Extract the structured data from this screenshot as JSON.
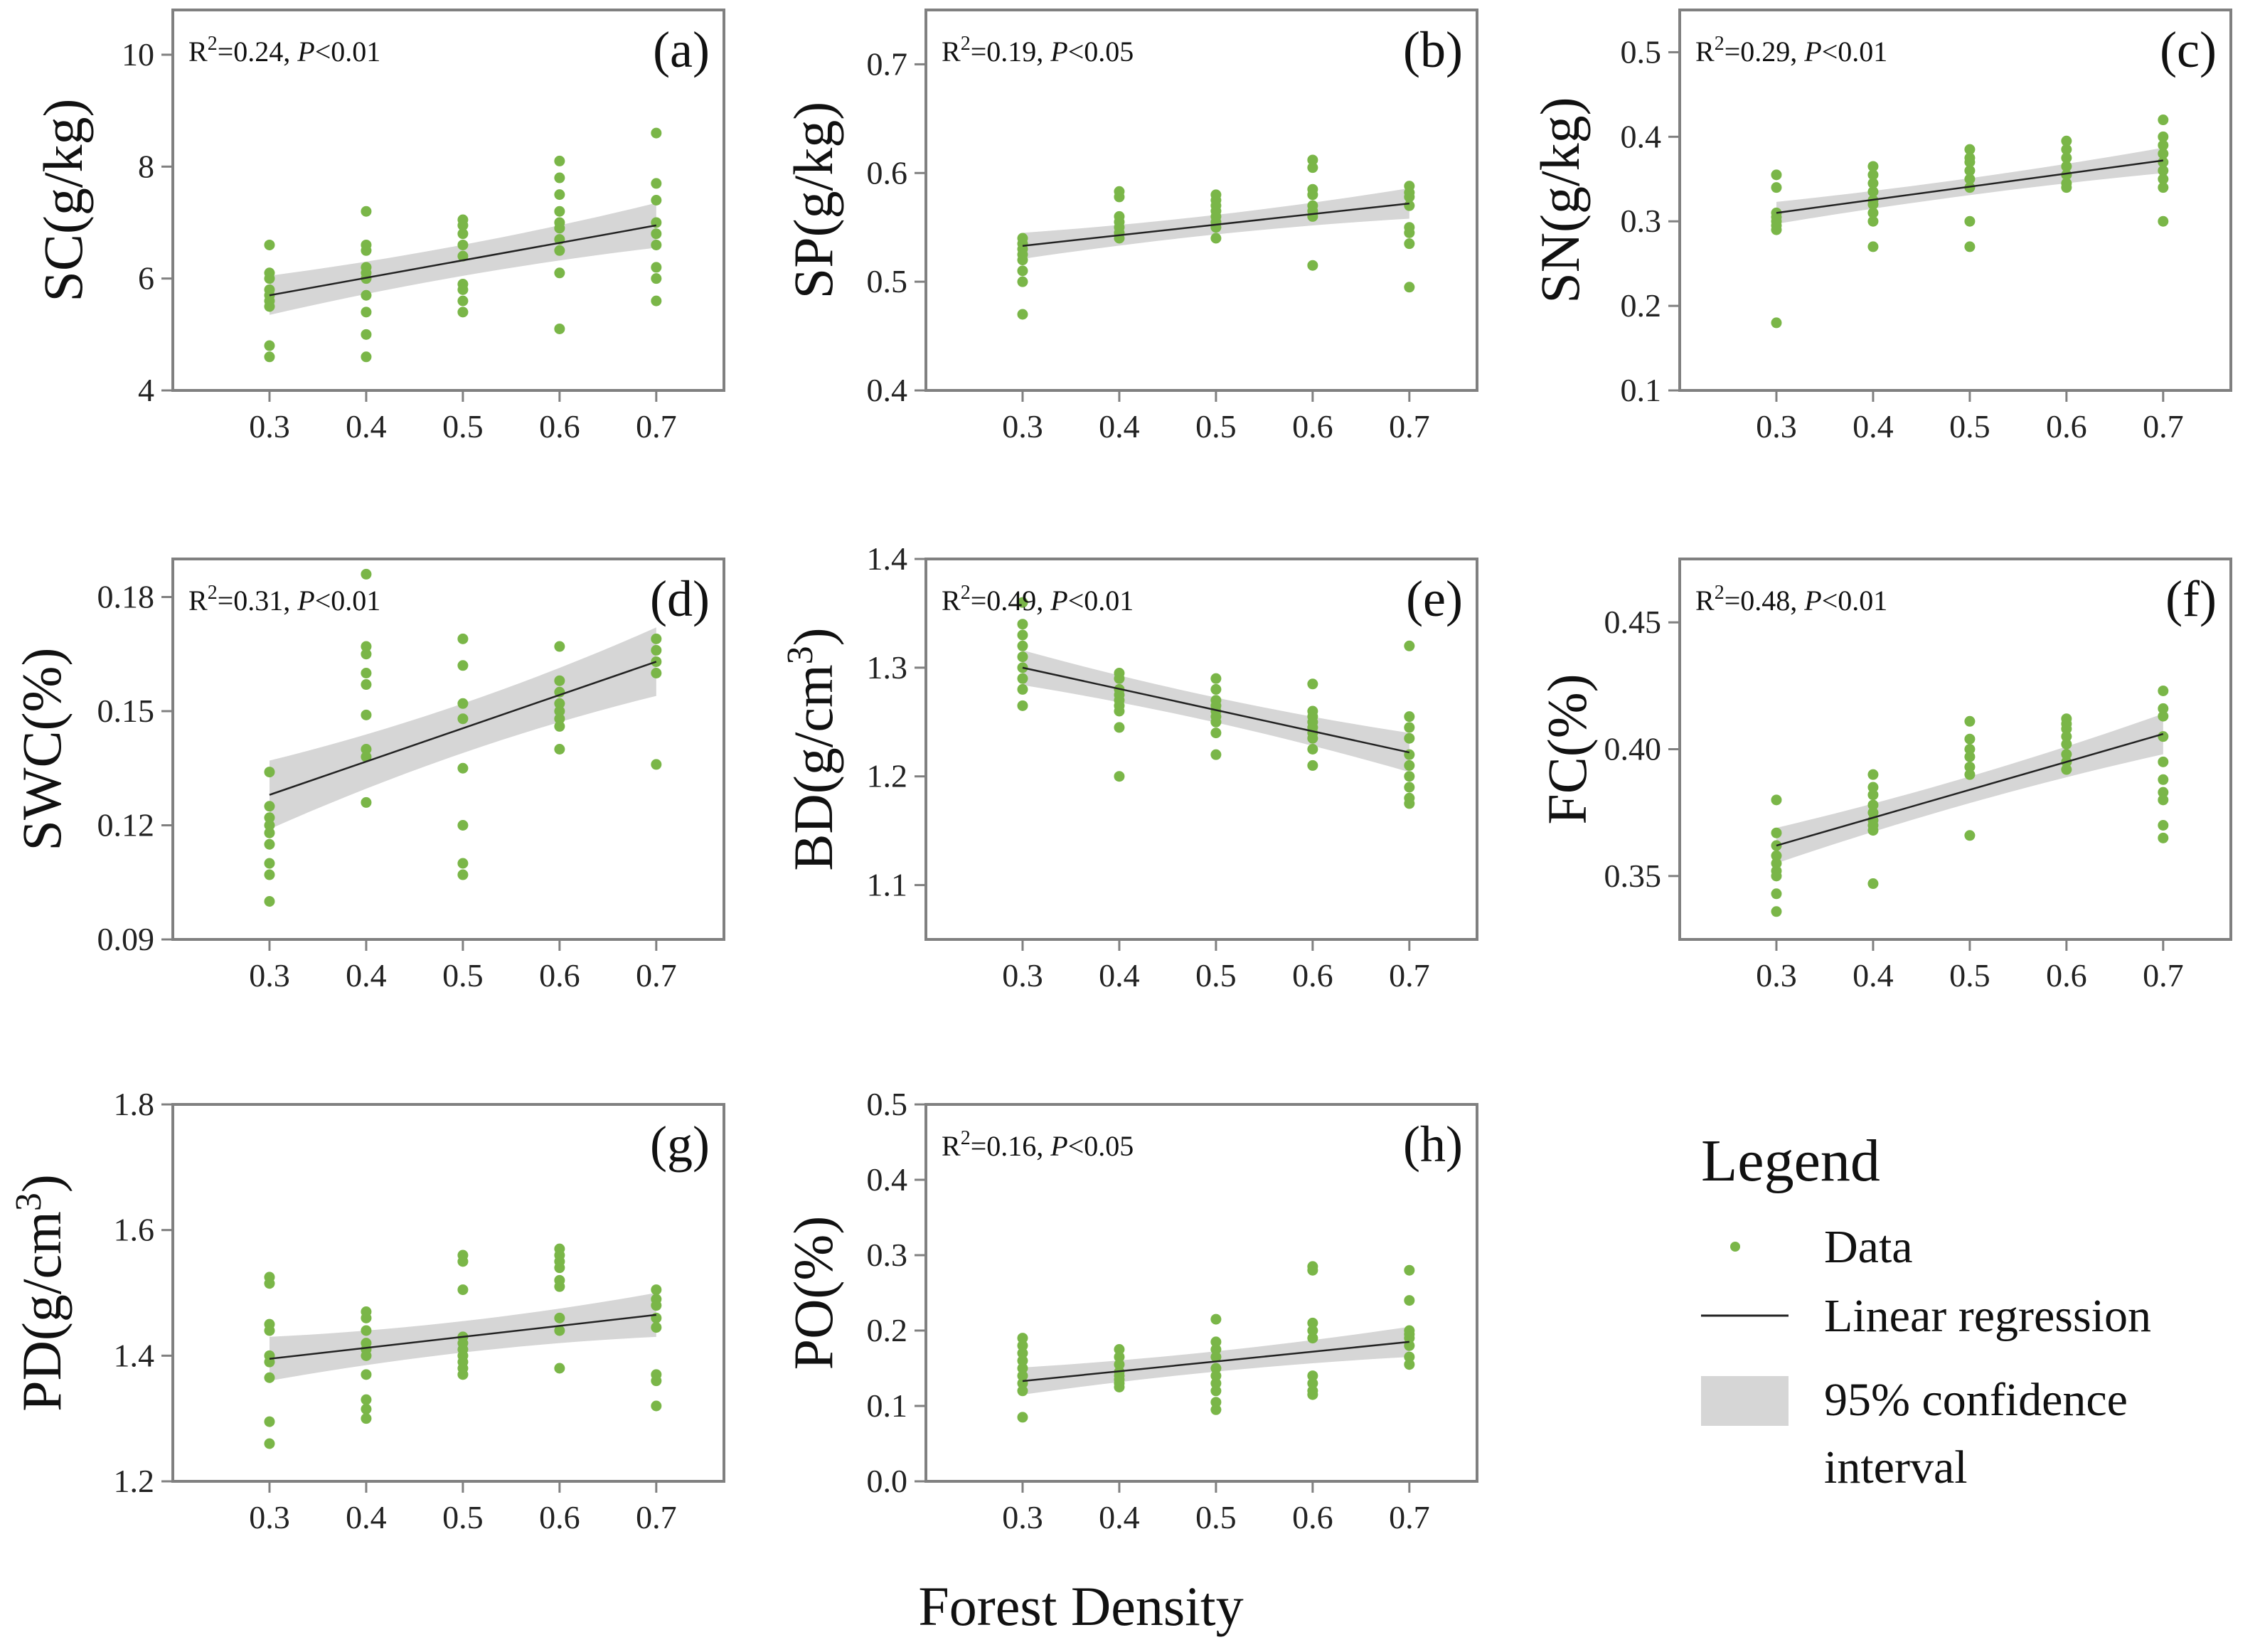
{
  "figure": {
    "xlabel": "Forest Density",
    "legend": {
      "title": "Legend",
      "data_label": "Data",
      "regression_label": "Linear regression",
      "ci_label_line1": "95% confidence",
      "ci_label_line2": "interval"
    },
    "colors": {
      "point": "#7ab648",
      "line": "#222222",
      "band": "#d6d6d6",
      "axis": "#808080"
    }
  },
  "chart_data": [
    {
      "type": "scatter",
      "panel": "(a)",
      "ylabel": "SC(g/kg)",
      "ylim": [
        4,
        10.8
      ],
      "yticks": [
        4,
        6,
        8,
        10
      ],
      "xticks": [
        0.3,
        0.4,
        0.5,
        0.6,
        0.7
      ],
      "xlim": [
        0.2,
        0.77
      ],
      "stat_prefix": "R",
      "stat_sup": "2",
      "stat_value": "=0.24, ",
      "stat_p": "P",
      "stat_cond": "<0.01",
      "fit": {
        "x0": 0.3,
        "y0": 5.7,
        "x1": 0.7,
        "y1": 6.95,
        "ci0": 0.35,
        "ci1": 0.4,
        "cimid": 0.18
      },
      "points": [
        [
          0.3,
          [
            6.6,
            6.1,
            6.0,
            5.8,
            5.7,
            5.6,
            5.5,
            4.8,
            4.6
          ]
        ],
        [
          0.4,
          [
            7.2,
            6.6,
            6.5,
            6.2,
            6.1,
            6.0,
            5.7,
            5.4,
            5.0,
            4.6
          ]
        ],
        [
          0.5,
          [
            7.05,
            6.95,
            6.8,
            6.6,
            6.4,
            5.9,
            5.8,
            5.6,
            5.4
          ]
        ],
        [
          0.6,
          [
            8.1,
            7.8,
            7.5,
            7.2,
            7.0,
            6.9,
            6.7,
            6.5,
            6.1,
            5.1
          ]
        ],
        [
          0.7,
          [
            8.6,
            7.7,
            7.4,
            7.0,
            6.8,
            6.6,
            6.2,
            6.0,
            5.6
          ]
        ]
      ]
    },
    {
      "type": "scatter",
      "panel": "(b)",
      "ylabel": "SP(g/kg)",
      "ylim": [
        0.4,
        0.75
      ],
      "yticks": [
        0.4,
        0.5,
        0.6,
        0.7
      ],
      "xticks": [
        0.3,
        0.4,
        0.5,
        0.6,
        0.7
      ],
      "xlim": [
        0.2,
        0.77
      ],
      "stat_prefix": "R",
      "stat_sup": "2",
      "stat_value": "=0.19, ",
      "stat_p": "P",
      "stat_cond": "<0.05",
      "fit": {
        "x0": 0.3,
        "y0": 0.533,
        "x1": 0.7,
        "y1": 0.572,
        "ci0": 0.012,
        "ci1": 0.014,
        "cimid": 0.005
      },
      "points": [
        [
          0.3,
          [
            0.54,
            0.535,
            0.53,
            0.525,
            0.52,
            0.51,
            0.5,
            0.47
          ]
        ],
        [
          0.4,
          [
            0.583,
            0.578,
            0.56,
            0.555,
            0.55,
            0.545,
            0.54
          ]
        ],
        [
          0.5,
          [
            0.58,
            0.575,
            0.57,
            0.565,
            0.56,
            0.555,
            0.55,
            0.54
          ]
        ],
        [
          0.6,
          [
            0.612,
            0.605,
            0.585,
            0.58,
            0.57,
            0.565,
            0.56,
            0.515
          ]
        ],
        [
          0.7,
          [
            0.588,
            0.582,
            0.578,
            0.57,
            0.55,
            0.545,
            0.535,
            0.495
          ]
        ]
      ]
    },
    {
      "type": "scatter",
      "panel": "(c)",
      "ylabel": "SN(g/kg)",
      "ylim": [
        0.1,
        0.55
      ],
      "yticks": [
        0.1,
        0.2,
        0.3,
        0.4,
        0.5
      ],
      "xticks": [
        0.3,
        0.4,
        0.5,
        0.6,
        0.7
      ],
      "xlim": [
        0.2,
        0.77
      ],
      "stat_prefix": "R",
      "stat_sup": "2",
      "stat_value": "=0.29, ",
      "stat_p": "P",
      "stat_cond": "<0.01",
      "fit": {
        "x0": 0.3,
        "y0": 0.31,
        "x1": 0.7,
        "y1": 0.372,
        "ci0": 0.013,
        "ci1": 0.015,
        "cimid": 0.006
      },
      "points": [
        [
          0.3,
          [
            0.355,
            0.34,
            0.31,
            0.305,
            0.3,
            0.295,
            0.29,
            0.18
          ]
        ],
        [
          0.4,
          [
            0.365,
            0.355,
            0.345,
            0.335,
            0.325,
            0.32,
            0.31,
            0.3,
            0.27
          ]
        ],
        [
          0.5,
          [
            0.385,
            0.375,
            0.37,
            0.36,
            0.35,
            0.34,
            0.3,
            0.27
          ]
        ],
        [
          0.6,
          [
            0.395,
            0.385,
            0.375,
            0.365,
            0.355,
            0.345,
            0.34
          ]
        ],
        [
          0.7,
          [
            0.42,
            0.4,
            0.39,
            0.38,
            0.37,
            0.36,
            0.35,
            0.34,
            0.3
          ]
        ]
      ]
    },
    {
      "type": "scatter",
      "panel": "(d)",
      "ylabel": "SWC(%)",
      "ylim": [
        0.09,
        0.19
      ],
      "yticks": [
        0.09,
        0.12,
        0.15,
        0.18
      ],
      "xticks": [
        0.3,
        0.4,
        0.5,
        0.6,
        0.7
      ],
      "xlim": [
        0.2,
        0.77
      ],
      "stat_prefix": "R",
      "stat_sup": "2",
      "stat_value": "=0.31, ",
      "stat_p": "P",
      "stat_cond": "<0.01",
      "fit": {
        "x0": 0.3,
        "y0": 0.128,
        "x1": 0.7,
        "y1": 0.163,
        "ci0": 0.009,
        "ci1": 0.009,
        "cimid": 0.004
      },
      "points": [
        [
          0.3,
          [
            0.134,
            0.125,
            0.122,
            0.12,
            0.118,
            0.115,
            0.11,
            0.107,
            0.1
          ]
        ],
        [
          0.4,
          [
            0.186,
            0.167,
            0.165,
            0.16,
            0.157,
            0.149,
            0.14,
            0.138,
            0.126
          ]
        ],
        [
          0.5,
          [
            0.169,
            0.162,
            0.152,
            0.148,
            0.135,
            0.12,
            0.11,
            0.107
          ]
        ],
        [
          0.6,
          [
            0.167,
            0.158,
            0.155,
            0.152,
            0.15,
            0.148,
            0.146,
            0.14
          ]
        ],
        [
          0.7,
          [
            0.169,
            0.166,
            0.163,
            0.16,
            0.136
          ]
        ]
      ]
    },
    {
      "type": "scatter",
      "panel": "(e)",
      "ylabel": "BD(g/cm3)",
      "ylabel_main": "BD(g/cm",
      "ylabel_sup": "3",
      "ylabel_close": ")",
      "ylim": [
        1.05,
        1.4
      ],
      "yticks": [
        1.1,
        1.2,
        1.3,
        1.4
      ],
      "xticks": [
        0.3,
        0.4,
        0.5,
        0.6,
        0.7
      ],
      "xlim": [
        0.2,
        0.77
      ],
      "stat_prefix": "R",
      "stat_sup": "2",
      "stat_value": "=0.49, ",
      "stat_p": "P",
      "stat_cond": "<0.01",
      "fit": {
        "x0": 0.3,
        "y0": 1.3,
        "x1": 0.7,
        "y1": 1.222,
        "ci0": 0.016,
        "ci1": 0.018,
        "cimid": 0.006
      },
      "points": [
        [
          0.3,
          [
            1.36,
            1.34,
            1.33,
            1.32,
            1.31,
            1.3,
            1.29,
            1.28,
            1.265
          ]
        ],
        [
          0.4,
          [
            1.295,
            1.29,
            1.28,
            1.275,
            1.27,
            1.265,
            1.26,
            1.245,
            1.2
          ]
        ],
        [
          0.5,
          [
            1.29,
            1.28,
            1.27,
            1.265,
            1.26,
            1.255,
            1.25,
            1.24,
            1.22
          ]
        ],
        [
          0.6,
          [
            1.285,
            1.26,
            1.255,
            1.25,
            1.245,
            1.24,
            1.235,
            1.225,
            1.21
          ]
        ],
        [
          0.7,
          [
            1.32,
            1.255,
            1.245,
            1.235,
            1.22,
            1.21,
            1.2,
            1.19,
            1.18,
            1.175
          ]
        ]
      ]
    },
    {
      "type": "scatter",
      "panel": "(f)",
      "ylabel": "FC(%)",
      "ylim": [
        0.325,
        0.475
      ],
      "yticks": [
        0.35,
        0.4,
        0.45
      ],
      "xticks": [
        0.3,
        0.4,
        0.5,
        0.6,
        0.7
      ],
      "xlim": [
        0.2,
        0.77
      ],
      "stat_prefix": "R",
      "stat_sup": "2",
      "stat_value": "=0.48, ",
      "stat_p": "P",
      "stat_cond": "<0.01",
      "fit": {
        "x0": 0.3,
        "y0": 0.362,
        "x1": 0.7,
        "y1": 0.406,
        "ci0": 0.007,
        "ci1": 0.008,
        "cimid": 0.003
      },
      "points": [
        [
          0.3,
          [
            0.38,
            0.367,
            0.362,
            0.358,
            0.355,
            0.352,
            0.35,
            0.343,
            0.336
          ]
        ],
        [
          0.4,
          [
            0.39,
            0.385,
            0.382,
            0.378,
            0.375,
            0.372,
            0.37,
            0.368,
            0.347
          ]
        ],
        [
          0.5,
          [
            0.411,
            0.404,
            0.4,
            0.397,
            0.393,
            0.39,
            0.366
          ]
        ],
        [
          0.6,
          [
            0.412,
            0.41,
            0.408,
            0.405,
            0.402,
            0.398,
            0.395,
            0.392
          ]
        ],
        [
          0.7,
          [
            0.423,
            0.416,
            0.413,
            0.405,
            0.395,
            0.388,
            0.383,
            0.38,
            0.37,
            0.365
          ]
        ]
      ]
    },
    {
      "type": "scatter",
      "panel": "(g)",
      "ylabel": "PD(g/cm3)",
      "ylabel_main": "PD(g/cm",
      "ylabel_sup": "3",
      "ylabel_close": ")",
      "ylim": [
        1.2,
        1.8
      ],
      "yticks": [
        1.2,
        1.4,
        1.6,
        1.8
      ],
      "xticks": [
        0.3,
        0.4,
        0.5,
        0.6,
        0.7
      ],
      "xlim": [
        0.2,
        0.77
      ],
      "stat_prefix": "",
      "stat_sup": "",
      "stat_value": "",
      "stat_p": "",
      "stat_cond": "",
      "fit": {
        "x0": 0.3,
        "y0": 1.395,
        "x1": 0.7,
        "y1": 1.465,
        "ci0": 0.035,
        "ci1": 0.035,
        "cimid": 0.015
      },
      "points": [
        [
          0.3,
          [
            1.525,
            1.515,
            1.45,
            1.44,
            1.4,
            1.39,
            1.365,
            1.295,
            1.26
          ]
        ],
        [
          0.4,
          [
            1.47,
            1.46,
            1.44,
            1.42,
            1.41,
            1.4,
            1.37,
            1.33,
            1.315,
            1.3
          ]
        ],
        [
          0.5,
          [
            1.56,
            1.55,
            1.505,
            1.43,
            1.42,
            1.41,
            1.4,
            1.39,
            1.38,
            1.37
          ]
        ],
        [
          0.6,
          [
            1.57,
            1.56,
            1.55,
            1.54,
            1.52,
            1.51,
            1.46,
            1.44,
            1.38
          ]
        ],
        [
          0.7,
          [
            1.505,
            1.49,
            1.48,
            1.46,
            1.445,
            1.37,
            1.36,
            1.32
          ]
        ]
      ]
    },
    {
      "type": "scatter",
      "panel": "(h)",
      "ylabel": "PO(%)",
      "ylim": [
        0.0,
        0.5
      ],
      "yticks": [
        0.0,
        0.1,
        0.2,
        0.3,
        0.4,
        0.5
      ],
      "xticks": [
        0.3,
        0.4,
        0.5,
        0.6,
        0.7
      ],
      "xlim": [
        0.2,
        0.77
      ],
      "stat_prefix": "R",
      "stat_sup": "2",
      "stat_value": "=0.16, ",
      "stat_p": "P",
      "stat_cond": "<0.05",
      "fit": {
        "x0": 0.3,
        "y0": 0.133,
        "x1": 0.7,
        "y1": 0.185,
        "ci0": 0.018,
        "ci1": 0.02,
        "cimid": 0.008
      },
      "points": [
        [
          0.3,
          [
            0.19,
            0.18,
            0.17,
            0.16,
            0.15,
            0.14,
            0.13,
            0.12,
            0.085
          ]
        ],
        [
          0.4,
          [
            0.175,
            0.165,
            0.155,
            0.145,
            0.14,
            0.135,
            0.13,
            0.125
          ]
        ],
        [
          0.5,
          [
            0.215,
            0.185,
            0.175,
            0.165,
            0.15,
            0.14,
            0.13,
            0.12,
            0.105,
            0.095
          ]
        ],
        [
          0.6,
          [
            0.285,
            0.28,
            0.21,
            0.2,
            0.19,
            0.14,
            0.13,
            0.12,
            0.115
          ]
        ],
        [
          0.7,
          [
            0.28,
            0.24,
            0.2,
            0.195,
            0.19,
            0.18,
            0.165,
            0.155
          ]
        ]
      ]
    }
  ]
}
